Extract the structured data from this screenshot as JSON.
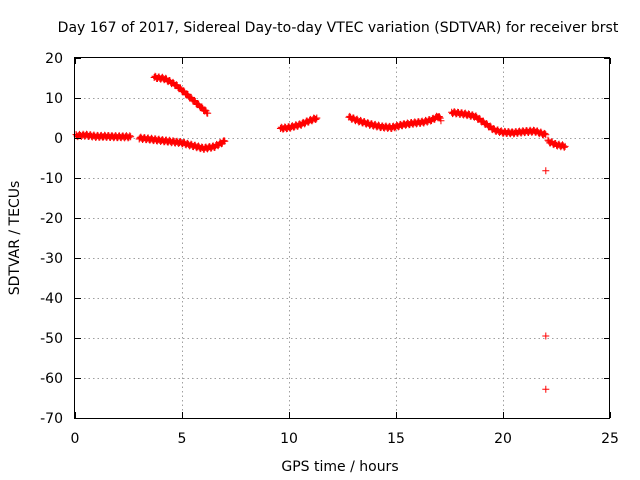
{
  "chart_data": {
    "type": "scatter",
    "title": "Day 167 of 2017, Sidereal Day-to-day VTEC variation (SDTVAR) for receiver brst",
    "xlabel": "GPS time / hours",
    "ylabel": "SDTVAR / TECUs",
    "xlim": [
      0,
      25
    ],
    "ylim": [
      -70,
      20
    ],
    "xticks": [
      0,
      5,
      10,
      15,
      20,
      25
    ],
    "yticks": [
      -70,
      -60,
      -50,
      -40,
      -30,
      -20,
      -10,
      0,
      10,
      20
    ],
    "grid": true,
    "marker": "+",
    "series_color": "#ff0000",
    "segments": [
      {
        "name": "arc-1",
        "points": [
          [
            0.05,
            0.6
          ],
          [
            0.5,
            0.7
          ],
          [
            1.0,
            0.4
          ],
          [
            1.5,
            0.4
          ],
          [
            2.0,
            0.3
          ],
          [
            2.6,
            0.3
          ]
        ]
      },
      {
        "name": "arc-2",
        "points": [
          [
            3.0,
            0.0
          ],
          [
            3.5,
            -0.3
          ],
          [
            4.0,
            -0.6
          ],
          [
            4.5,
            -0.9
          ],
          [
            5.0,
            -1.2
          ],
          [
            5.5,
            -1.9
          ],
          [
            6.0,
            -2.6
          ],
          [
            6.5,
            -2.2
          ],
          [
            7.0,
            -0.8
          ]
        ]
      },
      {
        "name": "arc-3",
        "points": [
          [
            3.7,
            15.2
          ],
          [
            4.2,
            14.8
          ],
          [
            4.7,
            13.3
          ],
          [
            5.2,
            11.0
          ],
          [
            5.7,
            8.6
          ],
          [
            6.2,
            6.2
          ]
        ]
      },
      {
        "name": "arc-4",
        "points": [
          [
            9.6,
            2.4
          ],
          [
            10.0,
            2.6
          ],
          [
            10.5,
            3.3
          ],
          [
            11.0,
            4.4
          ],
          [
            11.3,
            5.0
          ]
        ]
      },
      {
        "name": "arc-5",
        "points": [
          [
            12.8,
            5.2
          ],
          [
            13.3,
            4.2
          ],
          [
            13.8,
            3.4
          ],
          [
            14.3,
            2.8
          ],
          [
            14.8,
            2.6
          ],
          [
            15.3,
            3.3
          ],
          [
            15.8,
            3.7
          ],
          [
            16.3,
            4.0
          ],
          [
            16.7,
            4.6
          ],
          [
            17.0,
            5.5
          ],
          [
            17.1,
            4.3
          ]
        ]
      },
      {
        "name": "arc-6",
        "points": [
          [
            17.6,
            6.4
          ],
          [
            18.2,
            6.0
          ],
          [
            18.7,
            5.4
          ],
          [
            19.2,
            3.5
          ],
          [
            19.6,
            2.0
          ],
          [
            20.0,
            1.4
          ],
          [
            20.5,
            1.3
          ],
          [
            21.0,
            1.6
          ],
          [
            21.5,
            1.7
          ],
          [
            22.0,
            0.8
          ]
        ]
      },
      {
        "name": "arc-7",
        "points": [
          [
            22.1,
            -0.8
          ],
          [
            22.5,
            -1.7
          ],
          [
            22.9,
            -2.1
          ]
        ]
      },
      {
        "name": "outliers",
        "points": [
          [
            22.0,
            -8.2
          ],
          [
            22.0,
            -49.5
          ],
          [
            22.0,
            -62.8
          ]
        ]
      }
    ]
  }
}
